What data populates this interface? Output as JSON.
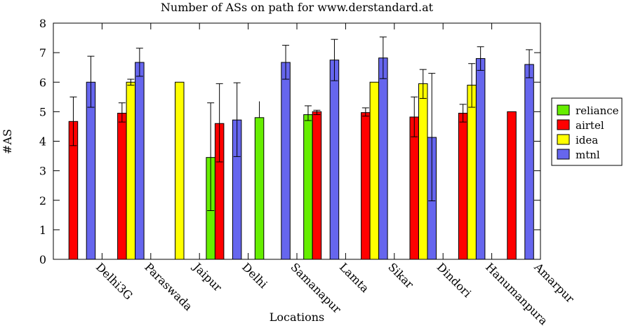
{
  "chart_data": {
    "type": "bar",
    "title": "Number of ASs on path for www.derstandard.at",
    "xlabel": "Locations",
    "ylabel": "#AS",
    "ylim": [
      0,
      8
    ],
    "yticks": [
      "0",
      "1",
      "2",
      "3",
      "4",
      "5",
      "6",
      "7",
      "8"
    ],
    "grid": false,
    "legend_position": "right",
    "categories": [
      "Delhi3G",
      "Paraswada",
      "Jaipur",
      "Delhi",
      "Samanapur",
      "Lamta",
      "Sikar",
      "Dindori",
      "Hanumanpura",
      "Amarpur"
    ],
    "series": [
      {
        "name": "reliance",
        "color": "#66ee00",
        "values": [
          null,
          null,
          null,
          3.45,
          4.8,
          4.9,
          null,
          null,
          null,
          null
        ],
        "err_low": [
          null,
          null,
          null,
          1.65,
          null,
          4.7,
          null,
          null,
          null,
          null
        ],
        "err_high": [
          null,
          null,
          null,
          5.3,
          5.35,
          5.2,
          null,
          null,
          null,
          null
        ]
      },
      {
        "name": "airtel",
        "color": "#ff0000",
        "values": [
          4.67,
          4.95,
          null,
          4.6,
          null,
          5.0,
          4.97,
          4.82,
          4.95,
          5.0
        ],
        "err_low": [
          3.85,
          4.65,
          null,
          3.3,
          null,
          4.9,
          4.85,
          4.15,
          4.65,
          null
        ],
        "err_high": [
          5.5,
          5.3,
          null,
          5.95,
          null,
          5.05,
          5.13,
          5.5,
          5.25,
          null
        ]
      },
      {
        "name": "idea",
        "color": "#ffff00",
        "values": [
          null,
          6.0,
          6.0,
          null,
          null,
          null,
          6.0,
          5.95,
          5.9,
          null
        ],
        "err_low": [
          null,
          5.9,
          null,
          null,
          null,
          null,
          null,
          5.45,
          5.15,
          null
        ],
        "err_high": [
          null,
          6.1,
          null,
          null,
          null,
          null,
          null,
          6.43,
          6.63,
          null
        ]
      },
      {
        "name": "mtnl",
        "color": "#6666ee",
        "values": [
          6.0,
          6.67,
          null,
          4.72,
          6.67,
          6.75,
          6.82,
          4.13,
          6.8,
          6.6
        ],
        "err_low": [
          5.15,
          6.2,
          null,
          3.48,
          6.1,
          6.05,
          6.12,
          1.98,
          6.4,
          6.15
        ],
        "err_high": [
          6.88,
          7.15,
          null,
          5.98,
          7.25,
          7.45,
          7.53,
          6.3,
          7.2,
          7.1
        ]
      }
    ]
  }
}
